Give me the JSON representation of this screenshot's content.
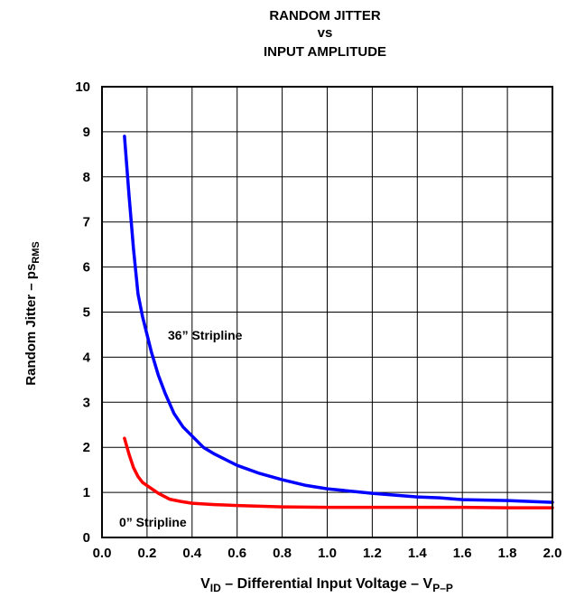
{
  "chart_data": {
    "type": "line",
    "title_lines": [
      "RANDOM JITTER",
      "vs",
      "INPUT AMPLITUDE"
    ],
    "xlabel": {
      "base": "V",
      "sub": "ID",
      "mid": " – Differential Input Voltage – V",
      "sub2": "P–P"
    },
    "ylabel": {
      "base": "Random Jitter – ps",
      "sub": "RMS"
    },
    "xlim": [
      0.0,
      2.0
    ],
    "ylim": [
      0,
      10
    ],
    "x_ticks": [
      "0.0",
      "0.2",
      "0.4",
      "0.6",
      "0.8",
      "1.0",
      "1.2",
      "1.4",
      "1.6",
      "1.8",
      "2.0"
    ],
    "y_ticks": [
      "0",
      "1",
      "2",
      "3",
      "4",
      "5",
      "6",
      "7",
      "8",
      "9",
      "10"
    ],
    "grid": true,
    "series": [
      {
        "name": "36” Stripline",
        "color": "#0000ff",
        "x": [
          0.1,
          0.12,
          0.14,
          0.16,
          0.18,
          0.2,
          0.22,
          0.25,
          0.28,
          0.32,
          0.36,
          0.4,
          0.45,
          0.5,
          0.6,
          0.7,
          0.8,
          0.9,
          1.0,
          1.2,
          1.4,
          1.5,
          1.6,
          1.8,
          2.0
        ],
        "y": [
          8.9,
          7.6,
          6.4,
          5.4,
          4.9,
          4.5,
          4.1,
          3.6,
          3.2,
          2.75,
          2.45,
          2.25,
          2.0,
          1.85,
          1.6,
          1.42,
          1.28,
          1.16,
          1.08,
          0.98,
          0.9,
          0.88,
          0.84,
          0.82,
          0.78
        ]
      },
      {
        "name": "0” Stripline",
        "color": "#ff0000",
        "x": [
          0.1,
          0.12,
          0.14,
          0.16,
          0.18,
          0.2,
          0.25,
          0.3,
          0.35,
          0.4,
          0.5,
          0.6,
          0.8,
          1.0,
          1.2,
          1.4,
          1.6,
          1.8,
          2.0
        ],
        "y": [
          2.2,
          1.85,
          1.55,
          1.35,
          1.22,
          1.15,
          0.98,
          0.85,
          0.8,
          0.76,
          0.73,
          0.71,
          0.68,
          0.67,
          0.67,
          0.67,
          0.67,
          0.66,
          0.66
        ]
      }
    ]
  }
}
